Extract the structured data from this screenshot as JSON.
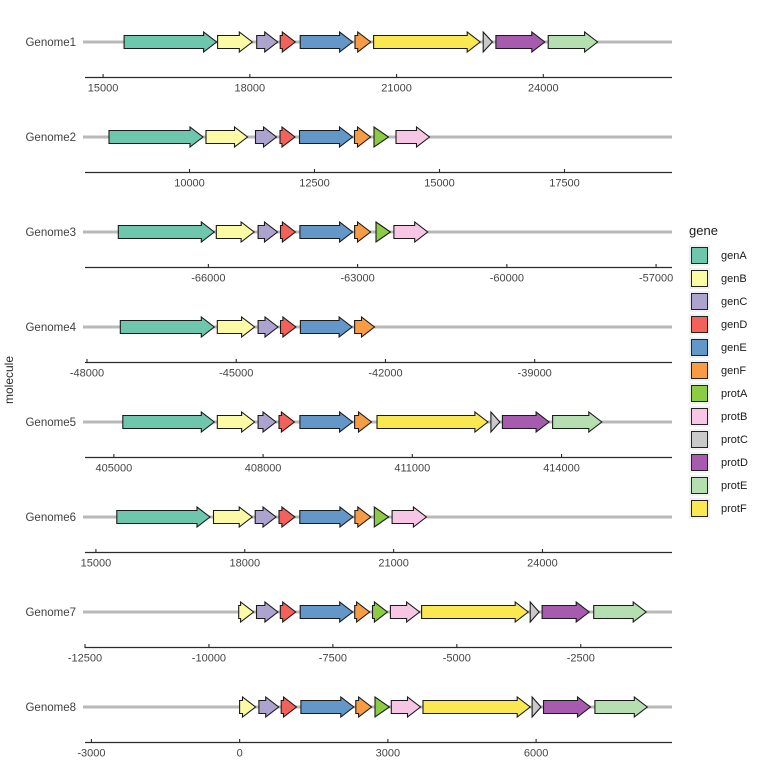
{
  "chart_data": {
    "type": "gene_arrows",
    "title": "",
    "xlabel": "",
    "ylabel": "molecule",
    "grid": false,
    "legend_position": "right",
    "legend_title": "gene",
    "track_color": "#b9b9b9",
    "axis_color": "#2b2b2b",
    "tick_label_color": "#454545",
    "facet_label_color": "#404040",
    "legend": [
      {
        "label": "genA",
        "color": "#6ec6ac"
      },
      {
        "label": "genB",
        "color": "#fbfba6"
      },
      {
        "label": "genC",
        "color": "#aca4cf"
      },
      {
        "label": "genD",
        "color": "#f2625a"
      },
      {
        "label": "genE",
        "color": "#6397c7"
      },
      {
        "label": "genF",
        "color": "#f79b45"
      },
      {
        "label": "protA",
        "color": "#8ccb44"
      },
      {
        "label": "protB",
        "color": "#f7c6e4"
      },
      {
        "label": "protC",
        "color": "#c9c9c9"
      },
      {
        "label": "protD",
        "color": "#a65baf"
      },
      {
        "label": "protE",
        "color": "#b6dfb1"
      },
      {
        "label": "protF",
        "color": "#f9e851"
      }
    ],
    "panels": [
      {
        "molecule": "Genome1",
        "axis_min": 14630,
        "axis_max": 26590,
        "ticks": [
          15000,
          18000,
          21000,
          24000
        ],
        "genes": [
          {
            "gene": "genA",
            "start": 15430,
            "end": 17320
          },
          {
            "gene": "genB",
            "start": 17340,
            "end": 18050
          },
          {
            "gene": "genC",
            "start": 18140,
            "end": 18570
          },
          {
            "gene": "genD",
            "start": 18620,
            "end": 18930
          },
          {
            "gene": "genE",
            "start": 19030,
            "end": 20100
          },
          {
            "gene": "genF",
            "start": 20150,
            "end": 20470
          },
          {
            "gene": "protF",
            "start": 20530,
            "end": 22710
          },
          {
            "gene": "protC",
            "start": 22770,
            "end": 22960
          },
          {
            "gene": "protD",
            "start": 23030,
            "end": 24030
          },
          {
            "gene": "protE",
            "start": 24100,
            "end": 25110
          }
        ]
      },
      {
        "molecule": "Genome2",
        "axis_min": 7910,
        "axis_max": 19610,
        "ticks": [
          10000,
          12500,
          15000,
          17500
        ],
        "genes": [
          {
            "gene": "genA",
            "start": 8390,
            "end": 10270
          },
          {
            "gene": "genB",
            "start": 10330,
            "end": 11160
          },
          {
            "gene": "genC",
            "start": 11320,
            "end": 11740
          },
          {
            "gene": "genD",
            "start": 11810,
            "end": 12110
          },
          {
            "gene": "genE",
            "start": 12200,
            "end": 13260
          },
          {
            "gene": "genF",
            "start": 13300,
            "end": 13620
          },
          {
            "gene": "protA",
            "start": 13690,
            "end": 13980
          },
          {
            "gene": "protB",
            "start": 14130,
            "end": 14800
          }
        ]
      },
      {
        "molecule": "Genome3",
        "axis_min": -68480,
        "axis_max": -56720,
        "ticks": [
          -66000,
          -63000,
          -60000,
          -57000
        ],
        "genes": [
          {
            "gene": "genA",
            "start": -67810,
            "end": -65880
          },
          {
            "gene": "genB",
            "start": -65840,
            "end": -65080
          },
          {
            "gene": "genC",
            "start": -65000,
            "end": -64610
          },
          {
            "gene": "genD",
            "start": -64550,
            "end": -64250
          },
          {
            "gene": "genE",
            "start": -64160,
            "end": -63100
          },
          {
            "gene": "genF",
            "start": -63060,
            "end": -62740
          },
          {
            "gene": "protA",
            "start": -62630,
            "end": -62340
          },
          {
            "gene": "protB",
            "start": -62270,
            "end": -61590
          }
        ]
      },
      {
        "molecule": "Genome4",
        "axis_min": -48040,
        "axis_max": -36280,
        "ticks": [
          -48000,
          -45000,
          -42000,
          -39000
        ],
        "genes": [
          {
            "gene": "genA",
            "start": -47330,
            "end": -45440
          },
          {
            "gene": "genB",
            "start": -45380,
            "end": -44630
          },
          {
            "gene": "genC",
            "start": -44560,
            "end": -44160
          },
          {
            "gene": "genD",
            "start": -44110,
            "end": -43800
          },
          {
            "gene": "genE",
            "start": -43710,
            "end": -42670
          },
          {
            "gene": "genF",
            "start": -42620,
            "end": -42220
          }
        ]
      },
      {
        "molecule": "Genome5",
        "axis_min": 404420,
        "axis_max": 416180,
        "ticks": [
          405000,
          408000,
          411000,
          414000
        ],
        "genes": [
          {
            "gene": "genA",
            "start": 405180,
            "end": 407020
          },
          {
            "gene": "genB",
            "start": 407080,
            "end": 407830
          },
          {
            "gene": "genC",
            "start": 407900,
            "end": 408260
          },
          {
            "gene": "genD",
            "start": 408320,
            "end": 408630
          },
          {
            "gene": "genE",
            "start": 408740,
            "end": 409800
          },
          {
            "gene": "genF",
            "start": 409840,
            "end": 410180
          },
          {
            "gene": "protF",
            "start": 410290,
            "end": 412520
          },
          {
            "gene": "protC",
            "start": 412580,
            "end": 412760
          },
          {
            "gene": "protD",
            "start": 412810,
            "end": 413750
          },
          {
            "gene": "protE",
            "start": 413820,
            "end": 414810
          }
        ]
      },
      {
        "molecule": "Genome6",
        "axis_min": 14780,
        "axis_max": 26570,
        "ticks": [
          15000,
          18000,
          21000,
          24000
        ],
        "genes": [
          {
            "gene": "genA",
            "start": 15420,
            "end": 17300
          },
          {
            "gene": "genB",
            "start": 17370,
            "end": 18150
          },
          {
            "gene": "genC",
            "start": 18210,
            "end": 18630
          },
          {
            "gene": "genD",
            "start": 18690,
            "end": 19010
          },
          {
            "gene": "genE",
            "start": 19110,
            "end": 20180
          },
          {
            "gene": "genF",
            "start": 20220,
            "end": 20540
          },
          {
            "gene": "protA",
            "start": 20610,
            "end": 20900
          },
          {
            "gene": "protB",
            "start": 20970,
            "end": 21660
          }
        ]
      },
      {
        "molecule": "Genome7",
        "axis_min": -12500,
        "axis_max": -700,
        "ticks": [
          -12500,
          -10000,
          -7500,
          -5000,
          -2500
        ],
        "genes": [
          {
            "gene": "genB",
            "start": -9400,
            "end": -9100
          },
          {
            "gene": "genC",
            "start": -9040,
            "end": -8610
          },
          {
            "gene": "genD",
            "start": -8560,
            "end": -8250
          },
          {
            "gene": "genE",
            "start": -8160,
            "end": -7100
          },
          {
            "gene": "genF",
            "start": -7060,
            "end": -6760
          },
          {
            "gene": "protA",
            "start": -6700,
            "end": -6400
          },
          {
            "gene": "protB",
            "start": -6340,
            "end": -5750
          },
          {
            "gene": "protF",
            "start": -5710,
            "end": -3560
          },
          {
            "gene": "protC",
            "start": -3520,
            "end": -3340
          },
          {
            "gene": "protD",
            "start": -3280,
            "end": -2330
          },
          {
            "gene": "protE",
            "start": -2240,
            "end": -1180
          }
        ]
      },
      {
        "molecule": "Genome8",
        "axis_min": -3130,
        "axis_max": 8710,
        "ticks": [
          -3000,
          0,
          3000,
          6000
        ],
        "genes": [
          {
            "gene": "genB",
            "start": 0,
            "end": 320
          },
          {
            "gene": "genC",
            "start": 390,
            "end": 790
          },
          {
            "gene": "genD",
            "start": 840,
            "end": 1150
          },
          {
            "gene": "genE",
            "start": 1240,
            "end": 2310
          },
          {
            "gene": "genF",
            "start": 2350,
            "end": 2670
          },
          {
            "gene": "protA",
            "start": 2740,
            "end": 3030
          },
          {
            "gene": "protB",
            "start": 3070,
            "end": 3660
          },
          {
            "gene": "protF",
            "start": 3710,
            "end": 5880
          },
          {
            "gene": "protC",
            "start": 5920,
            "end": 6100
          },
          {
            "gene": "protD",
            "start": 6150,
            "end": 7100
          },
          {
            "gene": "protE",
            "start": 7190,
            "end": 8250
          }
        ]
      }
    ]
  }
}
